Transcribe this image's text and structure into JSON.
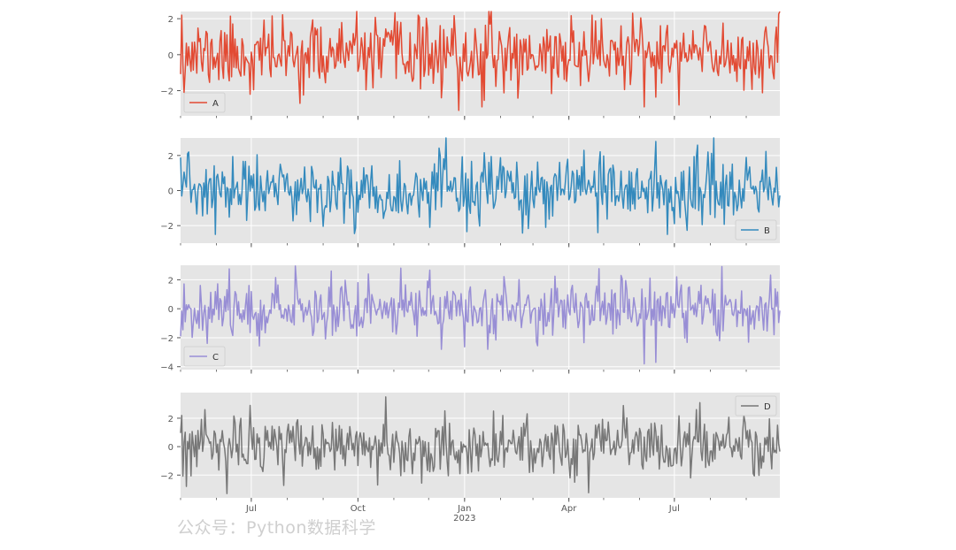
{
  "watermark": "公众号：Python数据科学",
  "chart_data": {
    "type": "line",
    "subplots": true,
    "style": "ggplot",
    "grid": true,
    "x_range": [
      "2022-05-01",
      "2023-09-30"
    ],
    "x_ticks": [
      {
        "date": "2022-07-01",
        "label": "Jul"
      },
      {
        "date": "2022-10-01",
        "label": "Oct"
      },
      {
        "date": "2023-01-01",
        "label": "Jan",
        "sublabel": "2023"
      },
      {
        "date": "2023-04-01",
        "label": "Apr"
      },
      {
        "date": "2023-07-01",
        "label": "Jul"
      }
    ],
    "series": [
      {
        "name": "A",
        "color": "#E24A33",
        "ylim": [
          -3.4,
          2.4
        ],
        "yticks": [
          -2,
          0,
          2
        ],
        "legend_loc": "lower left",
        "seed": 11,
        "spikes": [
          [
            1,
            2.2
          ],
          [
            60,
            -2.2
          ],
          [
            240,
            -3.1
          ],
          [
            225,
            -2.4
          ],
          [
            260,
            -2.9
          ],
          [
            400,
            -2.9
          ],
          [
            430,
            -2.8
          ],
          [
            390,
            2.3
          ],
          [
            355,
            2.2
          ],
          [
            205,
            2.2
          ]
        ]
      },
      {
        "name": "B",
        "color": "#348ABD",
        "ylim": [
          -3.0,
          3.0
        ],
        "yticks": [
          -2,
          0,
          2
        ],
        "legend_loc": "lower right",
        "seed": 23,
        "spikes": [
          [
            7,
            2.2
          ],
          [
            30,
            -2.5
          ],
          [
            410,
            2.8
          ],
          [
            420,
            -2.5
          ],
          [
            360,
            -2.4
          ],
          [
            315,
            -2.1
          ],
          [
            455,
            2.2
          ],
          [
            215,
            -2.1
          ]
        ]
      },
      {
        "name": "C",
        "color": "#988ED5",
        "ylim": [
          -4.2,
          3.0
        ],
        "yticks": [
          -4,
          -2,
          0,
          2
        ],
        "legend_loc": "lower left",
        "seed": 37,
        "spikes": [
          [
            0,
            -1.9
          ],
          [
            130,
            2.6
          ],
          [
            162,
            2.4
          ],
          [
            190,
            2.8
          ],
          [
            225,
            -2.8
          ],
          [
            265,
            -2.8
          ],
          [
            400,
            -3.8
          ],
          [
            410,
            -3.7
          ],
          [
            380,
            2.3
          ],
          [
            428,
            2.2
          ]
        ]
      },
      {
        "name": "D",
        "color": "#777777",
        "ylim": [
          -3.6,
          3.8
        ],
        "yticks": [
          -2,
          0,
          2
        ],
        "legend_loc": "upper right",
        "seed": 53,
        "spikes": [
          [
            5,
            -2.8
          ],
          [
            21,
            2.6
          ],
          [
            40,
            -3.3
          ],
          [
            60,
            2.9
          ],
          [
            177,
            3.5
          ],
          [
            170,
            -2.7
          ],
          [
            340,
            -2.5
          ],
          [
            270,
            2.5
          ],
          [
            445,
            2.6
          ],
          [
            440,
            -2.2
          ]
        ]
      }
    ]
  }
}
